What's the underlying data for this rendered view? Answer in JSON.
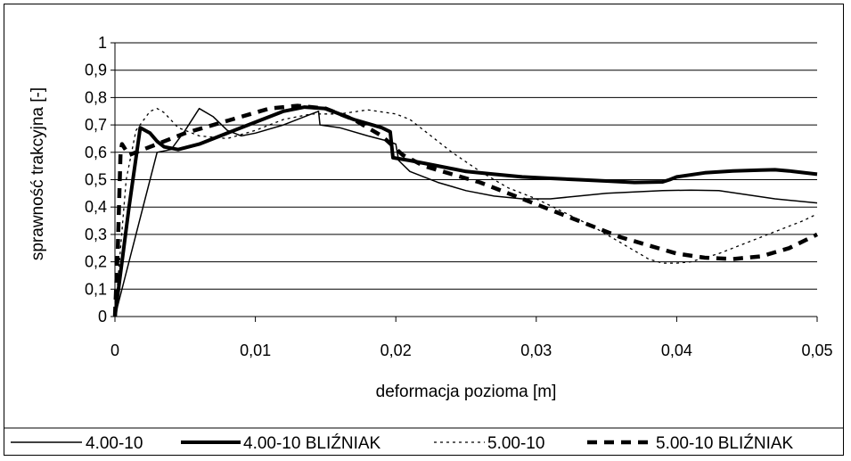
{
  "chart_data": {
    "type": "line",
    "xlabel": "deformacja pozioma [m]",
    "ylabel": "sprawność trakcyjna [-]",
    "xlim": [
      0,
      0.05
    ],
    "ylim": [
      0,
      1
    ],
    "x_ticks": [
      "0",
      "0,01",
      "0,02",
      "0,03",
      "0,04",
      "0,05"
    ],
    "y_ticks": [
      "0",
      "0,1",
      "0,2",
      "0,3",
      "0,4",
      "0,5",
      "0,6",
      "0,7",
      "0,8",
      "0,9",
      "1"
    ],
    "grid": "horizontal",
    "legend_position": "bottom",
    "series": [
      {
        "name": "4.00-10",
        "style": "thin-solid",
        "points": [
          [
            0,
            0
          ],
          [
            0.002,
            0.4
          ],
          [
            0.003,
            0.6
          ],
          [
            0.004,
            0.61
          ],
          [
            0.005,
            0.68
          ],
          [
            0.006,
            0.76
          ],
          [
            0.007,
            0.73
          ],
          [
            0.008,
            0.68
          ],
          [
            0.009,
            0.66
          ],
          [
            0.01,
            0.67
          ],
          [
            0.012,
            0.7
          ],
          [
            0.014,
            0.74
          ],
          [
            0.0145,
            0.75
          ],
          [
            0.0146,
            0.7
          ],
          [
            0.016,
            0.69
          ],
          [
            0.018,
            0.66
          ],
          [
            0.0195,
            0.64
          ],
          [
            0.02,
            0.63
          ],
          [
            0.0202,
            0.57
          ],
          [
            0.021,
            0.53
          ],
          [
            0.023,
            0.49
          ],
          [
            0.025,
            0.46
          ],
          [
            0.027,
            0.44
          ],
          [
            0.029,
            0.43
          ],
          [
            0.031,
            0.43
          ],
          [
            0.033,
            0.44
          ],
          [
            0.035,
            0.45
          ],
          [
            0.037,
            0.455
          ],
          [
            0.039,
            0.46
          ],
          [
            0.041,
            0.462
          ],
          [
            0.043,
            0.46
          ],
          [
            0.045,
            0.445
          ],
          [
            0.047,
            0.43
          ],
          [
            0.05,
            0.415
          ]
        ]
      },
      {
        "name": "4.00-10 BLIŹNIAK",
        "style": "thick-solid",
        "points": [
          [
            0,
            0
          ],
          [
            0.001,
            0.4
          ],
          [
            0.0018,
            0.69
          ],
          [
            0.0025,
            0.67
          ],
          [
            0.003,
            0.64
          ],
          [
            0.0035,
            0.62
          ],
          [
            0.0045,
            0.61
          ],
          [
            0.006,
            0.63
          ],
          [
            0.008,
            0.67
          ],
          [
            0.01,
            0.71
          ],
          [
            0.012,
            0.75
          ],
          [
            0.0135,
            0.765
          ],
          [
            0.015,
            0.76
          ],
          [
            0.017,
            0.72
          ],
          [
            0.019,
            0.69
          ],
          [
            0.0196,
            0.675
          ],
          [
            0.0198,
            0.58
          ],
          [
            0.021,
            0.57
          ],
          [
            0.023,
            0.55
          ],
          [
            0.025,
            0.53
          ],
          [
            0.027,
            0.52
          ],
          [
            0.029,
            0.51
          ],
          [
            0.031,
            0.505
          ],
          [
            0.033,
            0.5
          ],
          [
            0.035,
            0.495
          ],
          [
            0.037,
            0.49
          ],
          [
            0.039,
            0.492
          ],
          [
            0.0395,
            0.5
          ],
          [
            0.04,
            0.51
          ],
          [
            0.042,
            0.525
          ],
          [
            0.044,
            0.532
          ],
          [
            0.046,
            0.535
          ],
          [
            0.047,
            0.536
          ],
          [
            0.048,
            0.532
          ],
          [
            0.05,
            0.52
          ]
        ]
      },
      {
        "name": "5.00-10",
        "style": "thin-dashed",
        "points": [
          [
            0,
            0
          ],
          [
            0.0008,
            0.5
          ],
          [
            0.0015,
            0.68
          ],
          [
            0.0025,
            0.75
          ],
          [
            0.003,
            0.76
          ],
          [
            0.0035,
            0.745
          ],
          [
            0.0045,
            0.69
          ],
          [
            0.006,
            0.66
          ],
          [
            0.008,
            0.65
          ],
          [
            0.01,
            0.68
          ],
          [
            0.012,
            0.72
          ],
          [
            0.014,
            0.74
          ],
          [
            0.016,
            0.74
          ],
          [
            0.018,
            0.755
          ],
          [
            0.02,
            0.74
          ],
          [
            0.021,
            0.72
          ],
          [
            0.022,
            0.68
          ],
          [
            0.024,
            0.6
          ],
          [
            0.026,
            0.53
          ],
          [
            0.028,
            0.47
          ],
          [
            0.03,
            0.43
          ],
          [
            0.032,
            0.38
          ],
          [
            0.034,
            0.33
          ],
          [
            0.036,
            0.27
          ],
          [
            0.038,
            0.21
          ],
          [
            0.039,
            0.195
          ],
          [
            0.04,
            0.195
          ],
          [
            0.041,
            0.2
          ],
          [
            0.043,
            0.23
          ],
          [
            0.045,
            0.27
          ],
          [
            0.047,
            0.31
          ],
          [
            0.049,
            0.35
          ],
          [
            0.05,
            0.375
          ]
        ]
      },
      {
        "name": "5.00-10 BLIŹNIAK",
        "style": "thick-dashed",
        "points": [
          [
            0,
            0
          ],
          [
            0.0002,
            0.25
          ],
          [
            0.0004,
            0.6
          ],
          [
            0.0005,
            0.63
          ],
          [
            0.001,
            0.59
          ],
          [
            0.0015,
            0.6
          ],
          [
            0.003,
            0.63
          ],
          [
            0.005,
            0.67
          ],
          [
            0.007,
            0.7
          ],
          [
            0.009,
            0.73
          ],
          [
            0.011,
            0.76
          ],
          [
            0.013,
            0.77
          ],
          [
            0.015,
            0.76
          ],
          [
            0.017,
            0.72
          ],
          [
            0.019,
            0.66
          ],
          [
            0.0205,
            0.59
          ],
          [
            0.022,
            0.55
          ],
          [
            0.024,
            0.52
          ],
          [
            0.026,
            0.49
          ],
          [
            0.028,
            0.45
          ],
          [
            0.03,
            0.41
          ],
          [
            0.032,
            0.37
          ],
          [
            0.034,
            0.33
          ],
          [
            0.036,
            0.29
          ],
          [
            0.038,
            0.26
          ],
          [
            0.04,
            0.23
          ],
          [
            0.042,
            0.215
          ],
          [
            0.044,
            0.21
          ],
          [
            0.046,
            0.22
          ],
          [
            0.048,
            0.25
          ],
          [
            0.05,
            0.3
          ]
        ]
      }
    ]
  }
}
